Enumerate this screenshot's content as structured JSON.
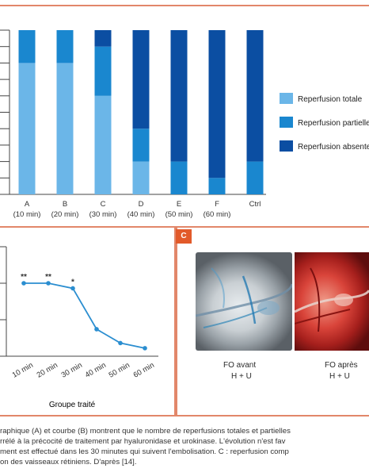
{
  "panel_a": {
    "categories": [
      {
        "letter": "A",
        "time": "(10 min)"
      },
      {
        "letter": "B",
        "time": "(20 min)"
      },
      {
        "letter": "C",
        "time": "(30 min)"
      },
      {
        "letter": "D",
        "time": "(40 min)"
      },
      {
        "letter": "E",
        "time": "(50 min)"
      },
      {
        "letter": "F",
        "time": "(60 min)"
      },
      {
        "letter": "Ctrl",
        "time": ""
      }
    ],
    "legend": [
      {
        "label": "Reperfusion totale",
        "color": "#6bb6e8"
      },
      {
        "label": "Reperfusion partielle",
        "color": "#1a87cf"
      },
      {
        "label": "Reperfusion absente",
        "color": "#0b4ea2"
      }
    ]
  },
  "panel_b": {
    "x_labels": [
      "10 min",
      "20 min",
      "30 min",
      "40 min",
      "50 min",
      "60 min"
    ],
    "xlabel": "Groupe traité",
    "markers": [
      "**",
      "**",
      "*",
      "",
      "",
      ""
    ]
  },
  "panel_c": {
    "badge": "C",
    "photos": [
      {
        "line1": "FO avant",
        "line2": "H + U"
      },
      {
        "line1": "FO après",
        "line2": "H + U"
      }
    ]
  },
  "caption": {
    "line1": "raphique (A) et courbe (B) montrent que le nombre de reperfusions totales et partielles",
    "line2": "rrélé à la précocité de traitement par hyaluronidase et urokinase. L'évolution n'est fav",
    "line3": "ment est effectué dans les 30 minutes qui suivent l'embolisation. C : reperfusion comp",
    "line4": "on des vaisseaux rétiniens. D'après [14]."
  },
  "chart_data": [
    {
      "type": "bar",
      "stacked": true,
      "categories": [
        "A (10 min)",
        "B (20 min)",
        "C (30 min)",
        "D (40 min)",
        "E (50 min)",
        "F (60 min)",
        "Ctrl"
      ],
      "series": [
        {
          "name": "Reperfusion totale",
          "values": [
            80,
            80,
            60,
            20,
            0,
            0,
            0
          ]
        },
        {
          "name": "Reperfusion partielle",
          "values": [
            20,
            20,
            30,
            20,
            20,
            10,
            20
          ]
        },
        {
          "name": "Reperfusion absente",
          "values": [
            0,
            0,
            10,
            60,
            80,
            90,
            80
          ]
        }
      ],
      "ylim": [
        0,
        100
      ],
      "legend_position": "right"
    },
    {
      "type": "line",
      "x": [
        "10 min",
        "20 min",
        "30 min",
        "40 min",
        "50 min",
        "60 min"
      ],
      "series": [
        {
          "values": [
            100,
            100,
            93,
            37,
            18,
            11
          ]
        }
      ],
      "xlabel": "Groupe traité",
      "ylim": [
        0,
        150
      ]
    }
  ]
}
